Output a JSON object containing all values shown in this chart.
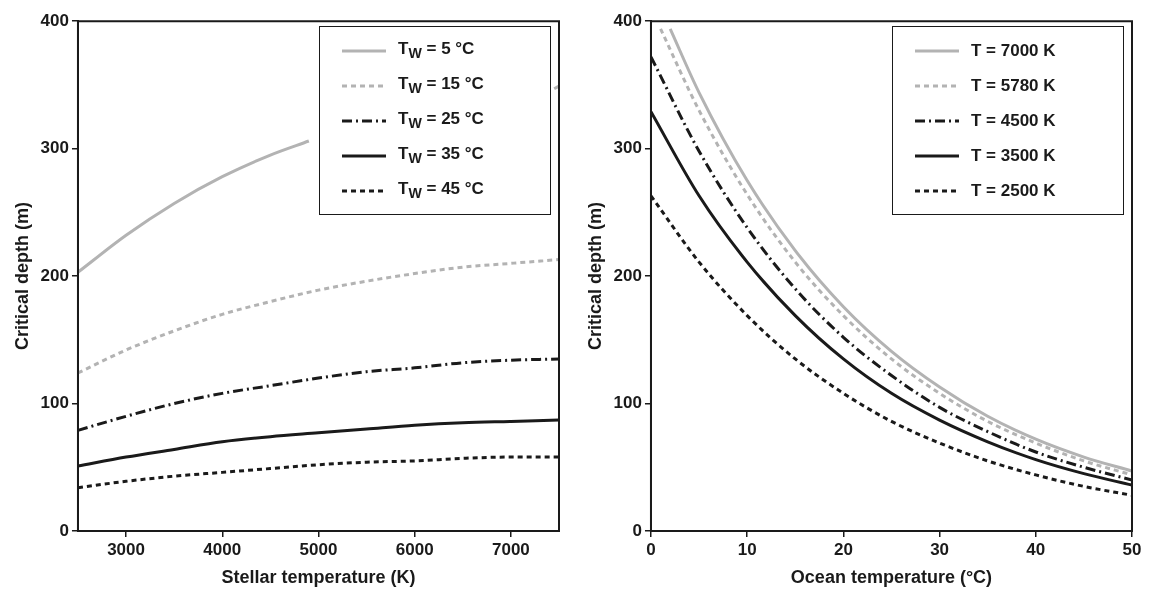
{
  "chart_data": [
    {
      "type": "line",
      "xlabel": "Stellar temperature (K)",
      "ylabel": "Critical depth (m)",
      "xlim": [
        2500,
        7500
      ],
      "xticks": [
        3000,
        4000,
        5000,
        6000,
        7000
      ],
      "ylim": [
        0,
        400
      ],
      "yticks": [
        0,
        100,
        200,
        300,
        400
      ],
      "grid": false,
      "legend": "top right",
      "marker": "none",
      "x": [
        2500,
        3000,
        3500,
        4000,
        4500,
        5000,
        5500,
        6000,
        6500,
        7000,
        7500
      ],
      "series": [
        {
          "name": "T$_{W}$ = 5 °C",
          "color": "#b3b3b3",
          "line_style": "solid",
          "x": [
            2500,
            3000,
            3500,
            4000,
            4500,
            4900,
            6000,
            7450,
            7500
          ],
          "values": [
            203,
            232,
            257,
            278,
            295,
            306,
            null,
            347,
            349
          ]
        },
        {
          "name": "T$_{W}$ = 15 °C",
          "color": "#b3b3b3",
          "line_style": "dashed",
          "values": [
            124,
            142,
            157,
            170,
            180,
            189,
            196,
            202,
            207,
            210,
            213
          ]
        },
        {
          "name": "T$_{W}$ = 25 °C",
          "color": "#1a1a1a",
          "line_style": "dashdot",
          "values": [
            79,
            90,
            100,
            108,
            114,
            120,
            125,
            128,
            132,
            134,
            135
          ]
        },
        {
          "name": "T$_{W}$ = 35 °C",
          "color": "#1a1a1a",
          "line_style": "solid",
          "values": [
            51,
            58,
            64,
            70,
            74,
            77,
            80,
            83,
            85,
            86,
            87
          ]
        },
        {
          "name": "T$_{W}$ = 45 °C",
          "color": "#1a1a1a",
          "line_style": "dashed",
          "values": [
            34,
            39,
            43,
            46,
            49,
            52,
            54,
            55,
            57,
            58,
            58
          ]
        }
      ]
    },
    {
      "type": "line",
      "xlabel": "Ocean temperature (°C)",
      "ylabel": "Critical depth (m)",
      "xlim": [
        0,
        50
      ],
      "xticks": [
        0,
        10,
        20,
        30,
        40,
        50
      ],
      "ylim": [
        0,
        400
      ],
      "yticks": [
        0,
        100,
        200,
        300,
        400
      ],
      "grid": false,
      "legend": "top right",
      "marker": "none",
      "series": [
        {
          "name": "T = 7000 K",
          "color": "#b3b3b3",
          "line_style": "solid",
          "x": [
            2,
            5,
            10,
            15,
            20,
            25,
            30,
            35,
            40,
            45,
            50
          ],
          "values": [
            394,
            344,
            275,
            220,
            176,
            141,
            113,
            90,
            72,
            58,
            47
          ]
        },
        {
          "name": "T = 5780 K",
          "color": "#b3b3b3",
          "line_style": "dashed",
          "x": [
            1,
            5,
            10,
            15,
            20,
            25,
            30,
            35,
            40,
            45,
            50
          ],
          "values": [
            394,
            330,
            264,
            211,
            169,
            135,
            108,
            86,
            69,
            55,
            44
          ]
        },
        {
          "name": "T = 4500 K",
          "color": "#1a1a1a",
          "line_style": "dashdot",
          "x": [
            0,
            5,
            10,
            15,
            20,
            25,
            30,
            35,
            40,
            45,
            50
          ],
          "values": [
            372,
            298,
            238,
            190,
            152,
            122,
            97,
            78,
            62,
            50,
            40
          ]
        },
        {
          "name": "T = 3500 K",
          "color": "#1a1a1a",
          "line_style": "solid",
          "x": [
            0,
            5,
            10,
            15,
            20,
            25,
            30,
            35,
            40,
            45,
            50
          ],
          "values": [
            329,
            263,
            211,
            169,
            135,
            108,
            87,
            70,
            56,
            45,
            36
          ]
        },
        {
          "name": "T = 2500 K",
          "color": "#1a1a1a",
          "line_style": "dashed",
          "x": [
            0,
            5,
            10,
            15,
            20,
            25,
            30,
            35,
            40,
            45,
            50
          ],
          "values": [
            263,
            211,
            169,
            135,
            108,
            86,
            69,
            55,
            44,
            35,
            28
          ]
        }
      ]
    }
  ]
}
